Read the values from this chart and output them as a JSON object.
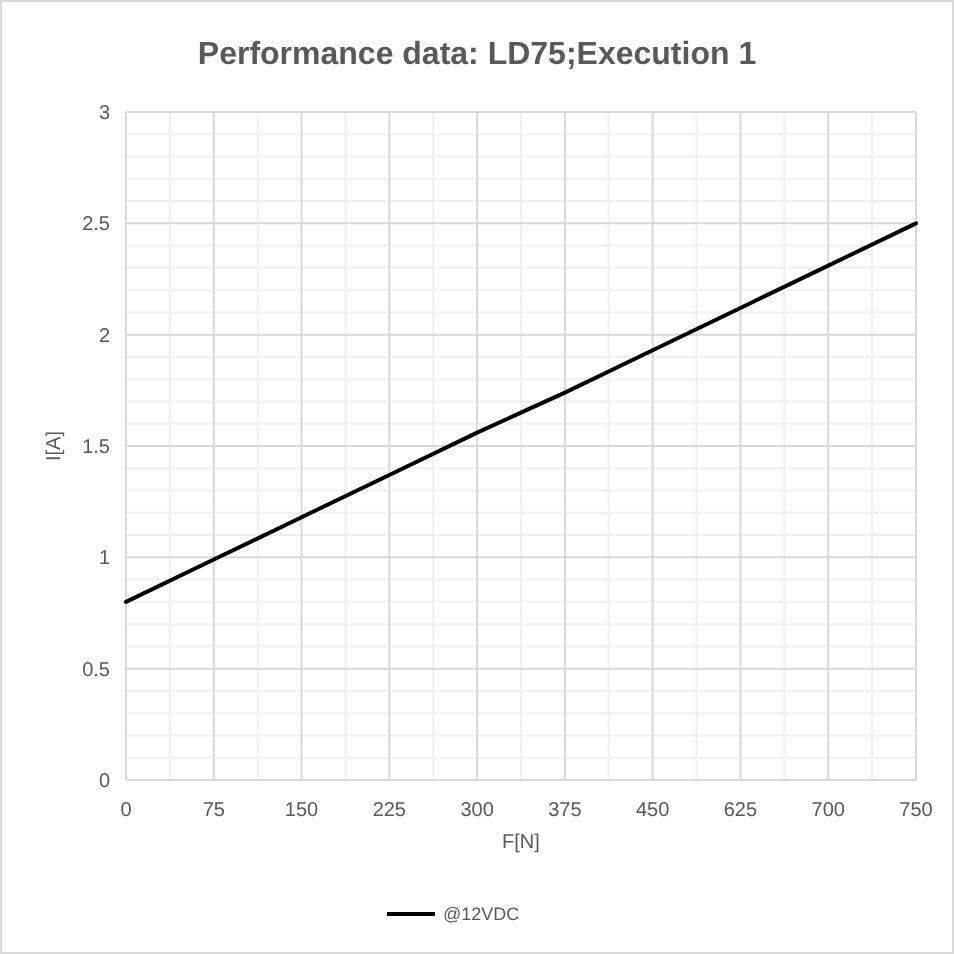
{
  "chart_data": {
    "type": "line",
    "title": "Performance data: LD75;Execution 1",
    "xlabel": "F[N]",
    "ylabel": "I[A]",
    "categories": [
      "0",
      "75",
      "150",
      "225",
      "300",
      "375",
      "450",
      "625",
      "700",
      "750"
    ],
    "series": [
      {
        "name": "@12VDC",
        "color": "#000000",
        "values": [
          0.8,
          0.99,
          1.18,
          1.37,
          1.56,
          1.74,
          1.93,
          2.12,
          2.31,
          2.5
        ]
      }
    ],
    "ylim": [
      0,
      3
    ],
    "yticks": [
      0,
      0.5,
      1,
      1.5,
      2,
      2.5,
      3
    ],
    "grid": true,
    "legend": "bottom",
    "marker": "none",
    "line_style": "solid"
  }
}
